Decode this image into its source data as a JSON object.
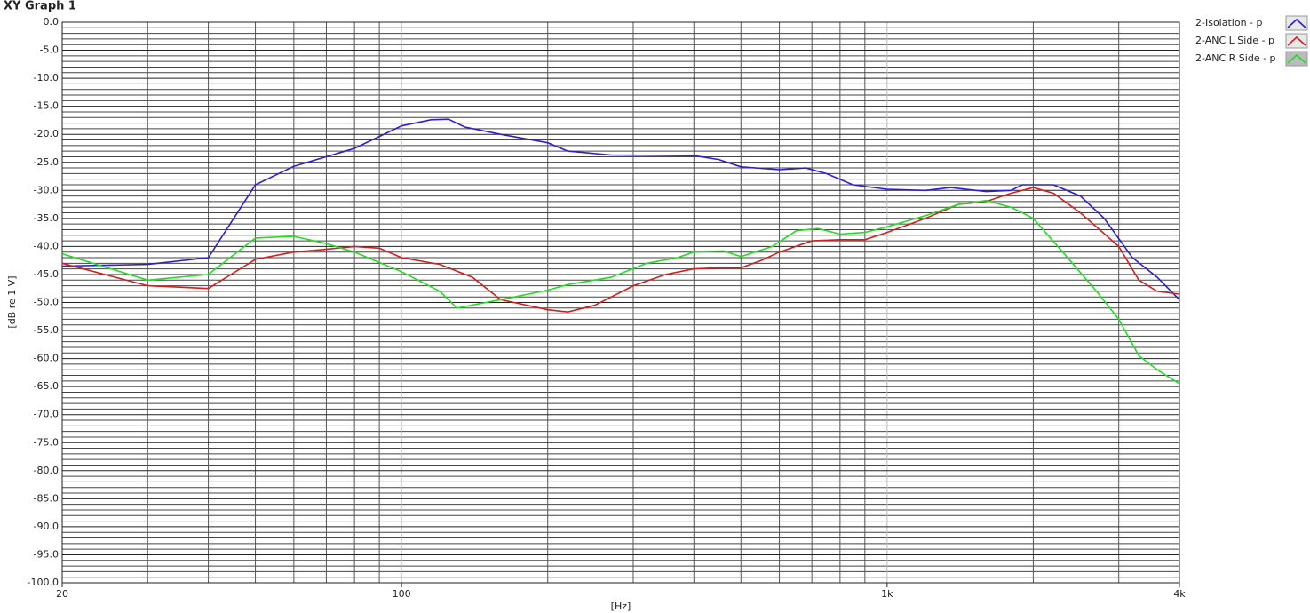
{
  "chart_data": {
    "type": "line",
    "title": "XY Graph 1",
    "x_label": "[Hz]",
    "y_label": "[dB re 1 V]",
    "xscale": "log",
    "grid": true,
    "legend": "top-right",
    "xlim": [
      20,
      4000
    ],
    "xticks": [
      20,
      100,
      {
        "value": 1000,
        "label": "1k"
      },
      {
        "value": 4000,
        "label": "4k"
      }
    ],
    "ylim": [
      -100,
      0
    ],
    "yticks": [
      {
        "value": 0,
        "label": "0.0"
      },
      {
        "value": -5,
        "label": "-5.0"
      },
      {
        "value": -10,
        "label": "-10.0"
      },
      {
        "value": -15,
        "label": "-15.0"
      },
      {
        "value": -20,
        "label": "-20.0"
      },
      {
        "value": -25,
        "label": "-25.0"
      },
      {
        "value": -30,
        "label": "-30.0"
      },
      {
        "value": -35,
        "label": "-35.0"
      },
      {
        "value": -40,
        "label": "-40.0"
      },
      {
        "value": -45,
        "label": "-45.0"
      },
      {
        "value": -50,
        "label": "-50.0"
      },
      {
        "value": -55,
        "label": "-55.0"
      },
      {
        "value": -60,
        "label": "-60.0"
      },
      {
        "value": -65,
        "label": "-65.0"
      },
      {
        "value": -70,
        "label": "-70.0"
      },
      {
        "value": -75,
        "label": "-75.0"
      },
      {
        "value": -80,
        "label": "-80.0"
      },
      {
        "value": -85,
        "label": "-85.0"
      },
      {
        "value": -90,
        "label": "-90.0"
      },
      {
        "value": -95,
        "label": "-95.0"
      },
      {
        "value": -100,
        "label": "-100.0"
      }
    ],
    "series": [
      {
        "name": "2-Isolation - p",
        "color": "#2a1fd6",
        "x": [
          20,
          30,
          40,
          50,
          60,
          80,
          100,
          115,
          125,
          135,
          160,
          200,
          220,
          270,
          400,
          450,
          500,
          600,
          680,
          750,
          850,
          1000,
          1200,
          1350,
          1600,
          1800,
          1900,
          2200,
          2500,
          2800,
          3200,
          3600,
          4000
        ],
        "values": [
          -43.5,
          -43.2,
          -42,
          -29,
          -25.7,
          -22.5,
          -18.5,
          -17.4,
          -17.3,
          -18.7,
          -20,
          -21.5,
          -23,
          -23.7,
          -23.8,
          -24.5,
          -25.8,
          -26.3,
          -26,
          -27,
          -29,
          -29.8,
          -30,
          -29.5,
          -30.2,
          -30,
          -29,
          -29,
          -31,
          -35,
          -42,
          -45.5,
          -49.5
        ]
      },
      {
        "name": "2-ANC L Side - p",
        "color": "#d21f1f",
        "x": [
          20,
          30,
          40,
          50,
          60,
          70,
          80,
          90,
          100,
          120,
          140,
          160,
          200,
          220,
          250,
          300,
          350,
          400,
          450,
          500,
          550,
          600,
          700,
          800,
          900,
          1000,
          1200,
          1400,
          1600,
          1800,
          2000,
          2200,
          2500,
          3000,
          3300,
          3600,
          4000
        ],
        "values": [
          -43,
          -47,
          -47.5,
          -42.3,
          -41,
          -40.5,
          -40,
          -40.3,
          -42,
          -43.2,
          -45.5,
          -49.5,
          -51.3,
          -51.7,
          -50.5,
          -47,
          -45,
          -44,
          -43.8,
          -43.8,
          -42.5,
          -41,
          -39,
          -38.8,
          -38.8,
          -37.5,
          -35,
          -32.5,
          -32,
          -30.5,
          -29.5,
          -30.5,
          -34,
          -40,
          -46,
          -48,
          -48.5
        ]
      },
      {
        "name": "2-ANC R Side - p",
        "color": "#22dd22",
        "x": [
          20,
          30,
          40,
          50,
          60,
          70,
          80,
          100,
          120,
          130,
          160,
          200,
          220,
          270,
          320,
          370,
          400,
          460,
          500,
          580,
          650,
          720,
          800,
          900,
          1000,
          1200,
          1400,
          1600,
          1800,
          2000,
          2300,
          2700,
          3000,
          3300,
          3600,
          4000
        ],
        "values": [
          -41.3,
          -46,
          -45,
          -38.5,
          -38.2,
          -39.5,
          -41,
          -44.5,
          -48,
          -51,
          -49.5,
          -47.8,
          -46.8,
          -45.5,
          -43,
          -42,
          -41,
          -40.8,
          -41.8,
          -40,
          -37.2,
          -36.8,
          -37.8,
          -37.5,
          -36.5,
          -34.5,
          -32.5,
          -31.8,
          -33,
          -35,
          -41,
          -48,
          -53,
          -59.5,
          -62,
          -64.5
        ]
      }
    ]
  }
}
